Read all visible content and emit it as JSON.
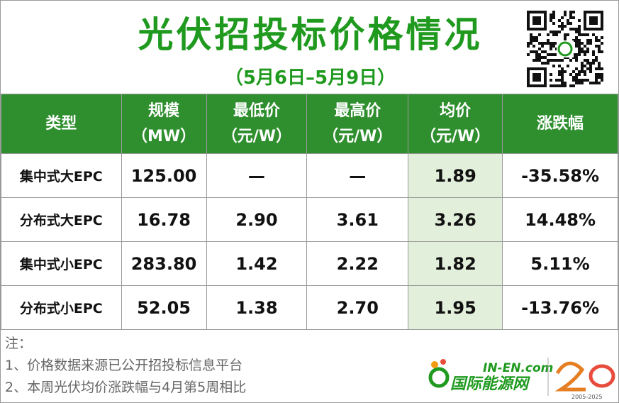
{
  "header": {
    "title": "光伏招投标价格情况",
    "subtitle": "（5月6日–5月9日）"
  },
  "table": {
    "columns": [
      [
        "类型"
      ],
      [
        "规模",
        "（MW）"
      ],
      [
        "最低价",
        "（元/W）"
      ],
      [
        "最高价",
        "（元/W）"
      ],
      [
        "均价",
        "（元/W）"
      ],
      [
        "涨跌幅"
      ]
    ],
    "rows": [
      [
        "集中式大EPC",
        "125.00",
        "—",
        "—",
        "1.89",
        "-35.58%"
      ],
      [
        "分布式大EPC",
        "16.78",
        "2.90",
        "3.61",
        "3.26",
        "14.48%"
      ],
      [
        "集中式小EPC",
        "283.80",
        "1.42",
        "2.22",
        "1.82",
        "5.11%"
      ],
      [
        "分布式小EPC",
        "52.05",
        "1.38",
        "2.70",
        "1.95",
        "-13.76%"
      ]
    ]
  },
  "notes": {
    "label": "注：",
    "lines": [
      "1、价格数据来源已公开招投标信息平台",
      "2、本周光伏均价涨跌幅与4月第5周相比"
    ]
  },
  "logo": {
    "domain": "IN-EN.com",
    "name": "国际能源网",
    "years": "2005-2025"
  }
}
